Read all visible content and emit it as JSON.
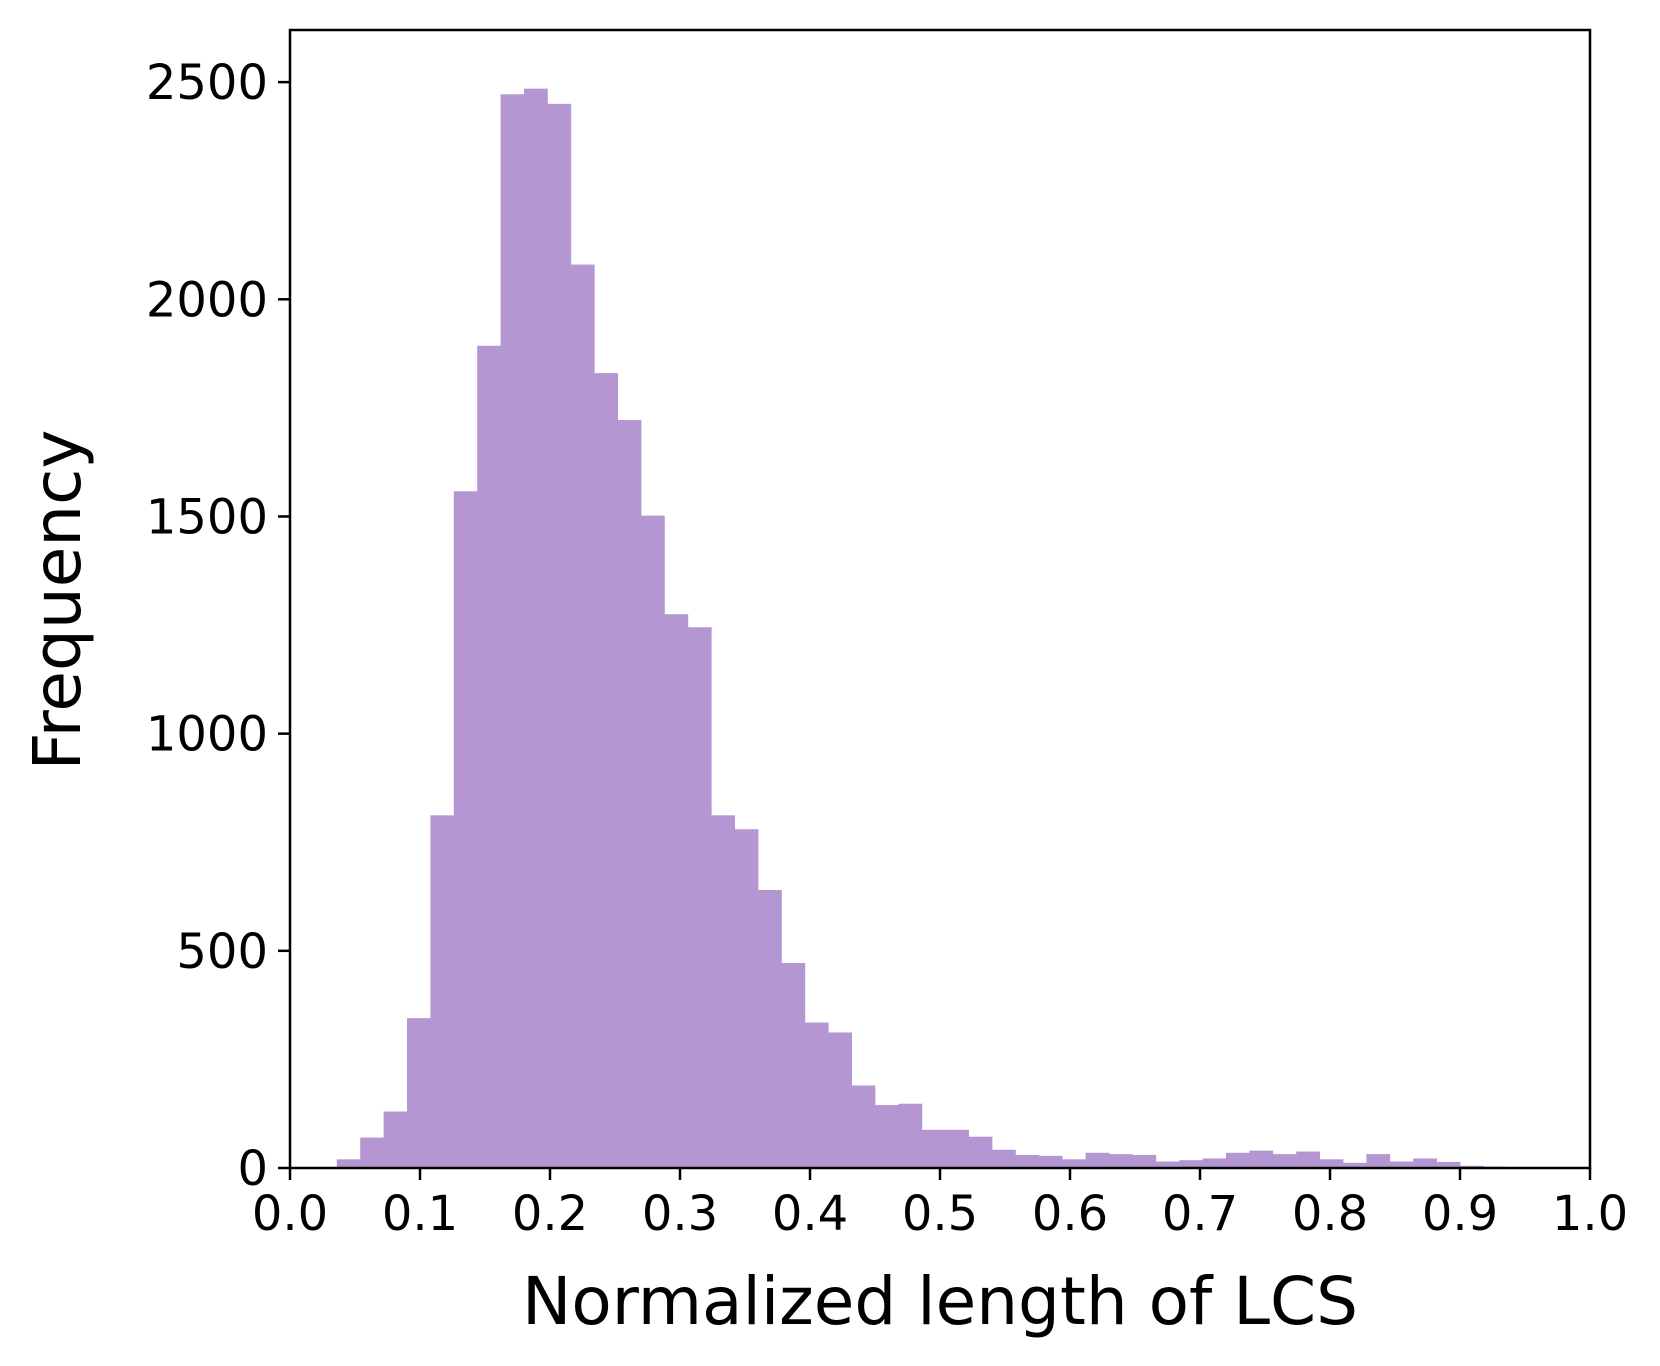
{
  "chart_data": {
    "type": "bar",
    "subtype": "histogram",
    "title": "",
    "xlabel": "Normalized length of LCS",
    "ylabel": "Frequency",
    "xlim": [
      0.0,
      1.0
    ],
    "ylim": [
      0,
      2620
    ],
    "bin_width": 0.018,
    "bin_start": 0.0,
    "xticks": [
      "0.0",
      "0.1",
      "0.2",
      "0.3",
      "0.4",
      "0.5",
      "0.6",
      "0.7",
      "0.8",
      "0.9",
      "1.0"
    ],
    "yticks": [
      "0",
      "500",
      "1000",
      "1500",
      "2000",
      "2500"
    ],
    "values": [
      0,
      0,
      20,
      70,
      130,
      345,
      812,
      1558,
      1893,
      2472,
      2485,
      2450,
      2080,
      1830,
      1722,
      1502,
      1275,
      1245,
      812,
      780,
      640,
      472,
      335,
      312,
      190,
      145,
      148,
      88,
      88,
      72,
      42,
      30,
      28,
      20,
      35,
      32,
      30,
      15,
      18,
      22,
      35,
      40,
      32,
      38,
      20,
      12,
      32,
      15,
      22,
      14,
      5,
      3,
      0,
      0,
      0,
      0
    ],
    "color": "#b497d2",
    "grid": false,
    "legend": false
  }
}
